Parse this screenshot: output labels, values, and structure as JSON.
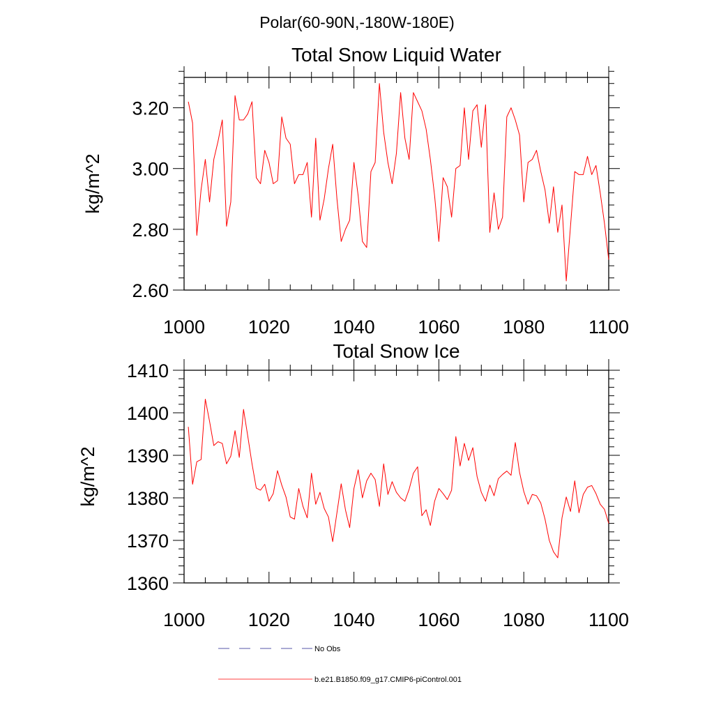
{
  "figure_title": "Polar(60-90N,-180W-180E)",
  "chart_data": [
    {
      "type": "line",
      "title": "Total Snow Liquid Water",
      "ylabel": "kg/m^2",
      "xlabel": "",
      "xlim": [
        1000,
        1100
      ],
      "ylim": [
        2.6,
        3.3
      ],
      "x_ticks": [
        1000,
        1020,
        1040,
        1060,
        1080,
        1100
      ],
      "x_tick_labels": [
        "1000",
        "1020",
        "1040",
        "1060",
        "1080",
        "1100"
      ],
      "y_ticks": [
        2.6,
        2.8,
        3.0,
        3.2
      ],
      "y_tick_labels": [
        "2.60",
        "2.80",
        "3.00",
        "3.20"
      ],
      "grid": false,
      "series": [
        {
          "name": "b.e21.B1850.f09_g17.CMIP6-piControl.001",
          "color": "#ff0000",
          "x_start": 1001,
          "x_step": 1,
          "values": [
            3.22,
            3.15,
            2.78,
            2.93,
            3.03,
            2.89,
            3.03,
            3.09,
            3.16,
            2.81,
            2.89,
            3.24,
            3.16,
            3.16,
            3.18,
            3.22,
            2.97,
            2.95,
            3.06,
            3.02,
            2.95,
            2.96,
            3.17,
            3.1,
            3.08,
            2.95,
            2.98,
            2.98,
            3.02,
            2.84,
            3.1,
            2.83,
            2.9,
            3.0,
            3.08,
            2.9,
            2.76,
            2.8,
            2.83,
            3.02,
            2.91,
            2.76,
            2.74,
            2.99,
            3.02,
            3.28,
            3.12,
            3.02,
            2.95,
            3.05,
            3.25,
            3.1,
            3.03,
            3.25,
            3.22,
            3.19,
            3.13,
            3.03,
            2.91,
            2.76,
            2.97,
            2.94,
            2.84,
            3.0,
            3.01,
            3.2,
            3.03,
            3.19,
            3.21,
            3.07,
            3.21,
            2.79,
            2.92,
            2.8,
            2.84,
            3.17,
            3.2,
            3.16,
            3.11,
            2.89,
            3.02,
            3.03,
            3.06,
            2.99,
            2.93,
            2.82,
            2.94,
            2.79,
            2.88,
            2.63,
            2.81,
            2.99,
            2.98,
            2.98,
            3.04,
            2.98,
            3.01,
            2.92,
            2.82,
            2.7
          ]
        }
      ]
    },
    {
      "type": "line",
      "title": "Total Snow Ice",
      "ylabel": "kg/m^2",
      "xlabel": "",
      "xlim": [
        1000,
        1100
      ],
      "ylim": [
        1360,
        1410
      ],
      "x_ticks": [
        1000,
        1020,
        1040,
        1060,
        1080,
        1100
      ],
      "x_tick_labels": [
        "1000",
        "1020",
        "1040",
        "1060",
        "1080",
        "1100"
      ],
      "y_ticks": [
        1360,
        1370,
        1380,
        1390,
        1400,
        1410
      ],
      "y_tick_labels": [
        "1360",
        "1370",
        "1380",
        "1390",
        "1400",
        "1410"
      ],
      "grid": false,
      "series": [
        {
          "name": "b.e21.B1850.f09_g17.CMIP6-piControl.001",
          "color": "#ff0000",
          "x_start": 1001,
          "x_step": 1,
          "values": [
            1396.7,
            1383.2,
            1388.5,
            1389.0,
            1403.2,
            1398.0,
            1392.3,
            1393.2,
            1392.8,
            1388.0,
            1389.8,
            1395.8,
            1389.5,
            1400.8,
            1394.5,
            1388.0,
            1382.3,
            1381.8,
            1383.2,
            1379.2,
            1381.0,
            1386.4,
            1383.0,
            1380.2,
            1375.5,
            1375.0,
            1382.2,
            1378.0,
            1375.3,
            1385.8,
            1378.5,
            1381.3,
            1377.5,
            1375.5,
            1369.7,
            1376.5,
            1383.3,
            1377.2,
            1373.0,
            1382.2,
            1386.6,
            1380.0,
            1384.0,
            1385.8,
            1384.3,
            1378.0,
            1388.0,
            1380.8,
            1383.8,
            1381.3,
            1380.0,
            1379.2,
            1382.0,
            1385.8,
            1387.3,
            1375.8,
            1377.2,
            1373.5,
            1379.2,
            1382.2,
            1381.0,
            1379.6,
            1381.8,
            1394.4,
            1387.5,
            1392.8,
            1388.8,
            1391.8,
            1385.0,
            1381.3,
            1379.2,
            1383.0,
            1380.5,
            1384.5,
            1385.5,
            1386.3,
            1385.3,
            1393.0,
            1386.0,
            1381.5,
            1378.5,
            1380.8,
            1380.5,
            1378.8,
            1375.0,
            1370.0,
            1367.3,
            1365.9,
            1375.3,
            1380.2,
            1376.8,
            1384.0,
            1376.5,
            1380.8,
            1382.5,
            1382.9,
            1381.0,
            1378.5,
            1377.3,
            1374.0
          ]
        }
      ]
    }
  ],
  "legend": {
    "placement": "bottom",
    "entries": [
      {
        "label": "No Obs",
        "color": "#1c1c8c",
        "dash": "dashed"
      },
      {
        "label": "b.e21.B1850.f09_g17.CMIP6-piControl.001",
        "color": "#ff0000",
        "dash": "solid"
      }
    ]
  }
}
